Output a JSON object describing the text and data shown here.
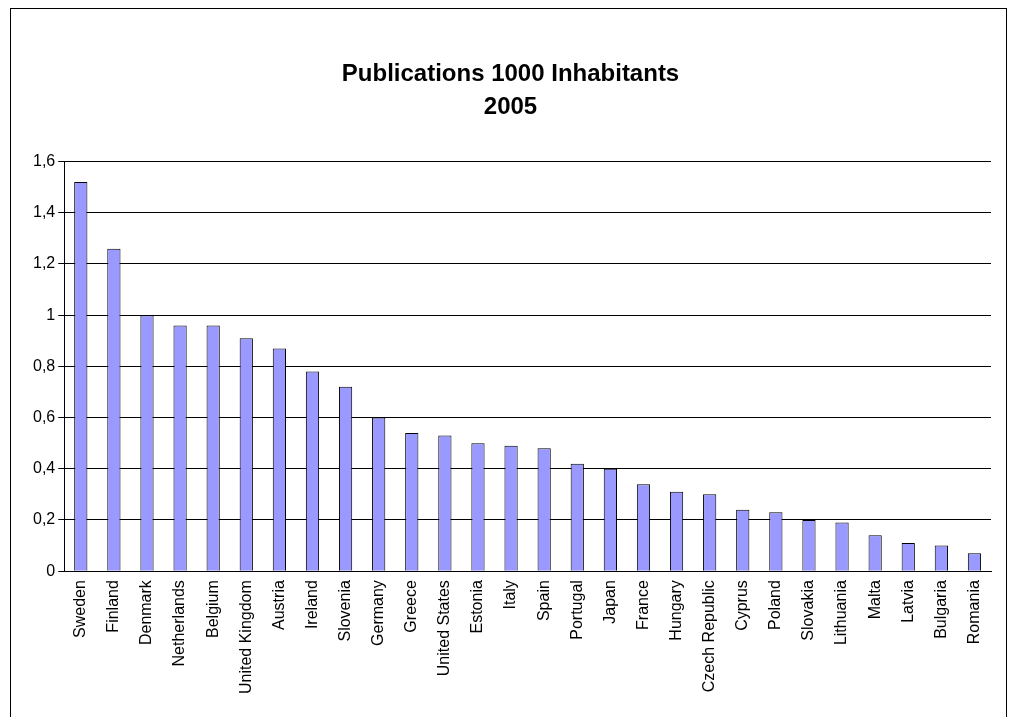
{
  "chart_data": {
    "type": "bar",
    "title": "Publications 1000 Inhabitants",
    "subtitle": "2005",
    "categories": [
      "Sweden",
      "Finland",
      "Denmark",
      "Netherlands",
      "Belgium",
      "United Kingdom",
      "Austria",
      "Ireland",
      "Slovenia",
      "Germany",
      "Greece",
      "United States",
      "Estonia",
      "Italy",
      "Spain",
      "Portugal",
      "Japan",
      "France",
      "Hungary",
      "Czech Republic",
      "Cyprus",
      "Poland",
      "Slovakia",
      "Lithuania",
      "Malta",
      "Latvia",
      "Bulgaria",
      "Romania"
    ],
    "values": [
      1.52,
      1.26,
      1.0,
      0.96,
      0.96,
      0.91,
      0.87,
      0.78,
      0.72,
      0.6,
      0.54,
      0.53,
      0.5,
      0.49,
      0.48,
      0.42,
      0.4,
      0.34,
      0.31,
      0.3,
      0.24,
      0.23,
      0.2,
      0.19,
      0.14,
      0.11,
      0.1,
      0.07
    ],
    "color": "#9999ff",
    "ylim": [
      0,
      1.6
    ],
    "yticks": [
      0,
      {
        "value": 0.2,
        "label": "0,2"
      },
      {
        "value": 0.4,
        "label": "0,4"
      },
      {
        "value": 0.6,
        "label": "0,6"
      },
      {
        "value": 0.8,
        "label": "0,8"
      },
      1,
      {
        "value": 1.2,
        "label": "1,2"
      },
      {
        "value": 1.4,
        "label": "1,4"
      },
      {
        "value": 1.6,
        "label": "1,6"
      }
    ],
    "grid": "y",
    "legend": false
  }
}
